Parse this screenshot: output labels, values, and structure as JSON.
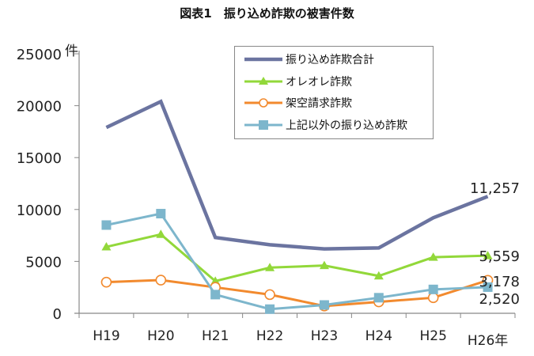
{
  "chart_data": {
    "type": "line",
    "title": "図表1　振り込め詐欺の被害件数",
    "xlabel": "",
    "ylabel": "件",
    "x_unit_suffix": "年",
    "categories": [
      "H19",
      "H20",
      "H21",
      "H22",
      "H23",
      "H24",
      "H25",
      "H26年"
    ],
    "ylim": [
      0,
      25000
    ],
    "yticks": [
      "0",
      "5000",
      "10000",
      "15000",
      "20000",
      "25000"
    ],
    "grid": false,
    "legend_position": "top-right inside",
    "series": [
      {
        "name": "振り込め詐欺合計",
        "color": "#6b74a0",
        "marker": "none",
        "values": [
          17900,
          20400,
          7300,
          6600,
          6200,
          6300,
          9200,
          11257
        ]
      },
      {
        "name": "オレオレ詐欺",
        "color": "#92d83a",
        "marker": "triangle",
        "values": [
          6400,
          7600,
          3100,
          4400,
          4600,
          3600,
          5400,
          5559
        ]
      },
      {
        "name": "架空請求詐欺",
        "color": "#f28a2e",
        "marker": "open-circle",
        "values": [
          3000,
          3200,
          2500,
          1800,
          700,
          1100,
          1500,
          3178
        ]
      },
      {
        "name": "上記以外の振り込め詐欺",
        "color": "#7db6cc",
        "marker": "square",
        "values": [
          8500,
          9600,
          1800,
          400,
          800,
          1500,
          2300,
          2520
        ]
      }
    ],
    "annotations": [
      {
        "text": "11,257",
        "series": "振り込め詐欺合計",
        "x": "H26年"
      },
      {
        "text": "5,559",
        "series": "オレオレ詐欺",
        "x": "H26年"
      },
      {
        "text": "3,178",
        "series": "架空請求詐欺",
        "x": "H26年"
      },
      {
        "text": "2,520",
        "series": "上記以外の振り込め詐欺",
        "x": "H26年"
      }
    ]
  },
  "labels": {
    "title": "図表1　振り込め詐欺の被害件数",
    "unit": "件"
  }
}
